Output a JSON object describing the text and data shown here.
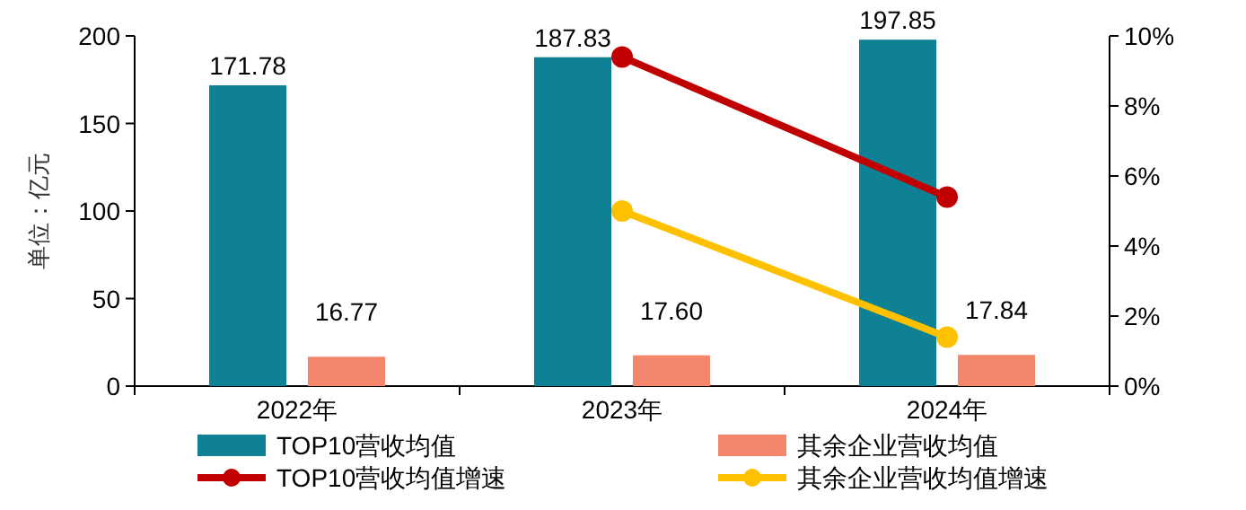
{
  "chart_data": {
    "type": "bar",
    "ylabel": "单位：亿元",
    "categories": [
      "2022年",
      "2023年",
      "2024年"
    ],
    "ylim": [
      0,
      200
    ],
    "yticks": [
      0,
      50,
      100,
      150,
      200
    ],
    "y2lim": [
      0,
      10
    ],
    "y2ticks": [
      {
        "value": 0,
        "label": "0%"
      },
      {
        "value": 2,
        "label": "2%"
      },
      {
        "value": 4,
        "label": "4%"
      },
      {
        "value": 6,
        "label": "6%"
      },
      {
        "value": 8,
        "label": "8%"
      },
      {
        "value": 10,
        "label": "10%"
      }
    ],
    "series": [
      {
        "name": "TOP10营收均值",
        "color": "#0e8294",
        "values": [
          171.78,
          187.83,
          197.85
        ],
        "value_labels": [
          "171.78",
          "187.83",
          "197.85"
        ]
      },
      {
        "name": "其余企业营收均值",
        "color": "#f4876b",
        "values": [
          16.77,
          17.6,
          17.84
        ],
        "value_labels": [
          "16.77",
          "17.60",
          "17.84"
        ]
      },
      {
        "name": "TOP10营收均值增速",
        "type": "line",
        "axis": "y2",
        "color": "#c00000",
        "values": [
          null,
          9.4,
          5.4
        ]
      },
      {
        "name": "其余企业营收均值增速",
        "type": "line",
        "axis": "y2",
        "color": "#ffc000",
        "values": [
          null,
          5.0,
          1.4
        ]
      }
    ],
    "marker": "circle",
    "grid": false,
    "legend": "bottom"
  }
}
